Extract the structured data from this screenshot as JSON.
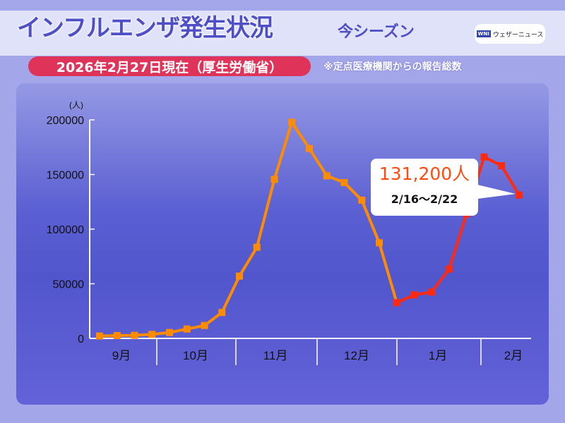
{
  "header": {
    "title": "インフルエンザ発生状況",
    "subtitle": "今シーズン",
    "logo_mark": "WNI",
    "logo_text": "ウェザーニュース"
  },
  "date_badge": "2026年2月27日現在（厚生労働省）",
  "note": "※定点医療機関からの報告総数",
  "callout": {
    "value": "131,200人",
    "range": "2/16〜2/22"
  },
  "chart_data": {
    "type": "line",
    "ylabel": "(人)",
    "ylim": [
      0,
      200000
    ],
    "yticks": [
      0,
      50000,
      100000,
      150000,
      200000
    ],
    "ytick_labels": [
      "0",
      "50000",
      "100000",
      "150000",
      "200000"
    ],
    "month_labels": [
      "9月",
      "10月",
      "11月",
      "12月",
      "1月",
      "2月"
    ],
    "grid": false,
    "values": [
      2200,
      2600,
      2800,
      3700,
      5400,
      8600,
      11800,
      23700,
      57000,
      83400,
      145600,
      197800,
      173800,
      148800,
      142600,
      126500,
      87500,
      32700,
      39800,
      42400,
      63400,
      114000,
      166000,
      158000,
      131200
    ],
    "series_colors": {
      "earlier": "#ff8c00",
      "recent": "#ff2a10"
    },
    "recent_start_index": 17
  }
}
